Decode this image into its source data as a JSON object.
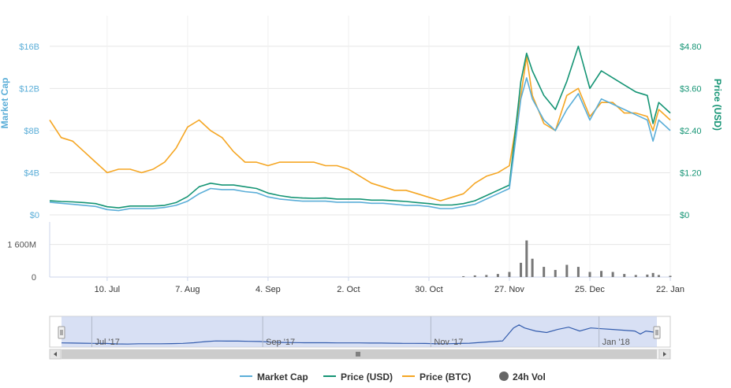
{
  "chart_data": {
    "type": "line",
    "x": [
      "2017-06-20",
      "2017-06-24",
      "2017-06-28",
      "2017-07-02",
      "2017-07-06",
      "2017-07-10",
      "2017-07-14",
      "2017-07-18",
      "2017-07-22",
      "2017-07-26",
      "2017-07-30",
      "2017-08-03",
      "2017-08-07",
      "2017-08-11",
      "2017-08-15",
      "2017-08-19",
      "2017-08-23",
      "2017-08-27",
      "2017-08-31",
      "2017-09-04",
      "2017-09-08",
      "2017-09-12",
      "2017-09-16",
      "2017-09-20",
      "2017-09-24",
      "2017-09-28",
      "2017-10-02",
      "2017-10-06",
      "2017-10-10",
      "2017-10-14",
      "2017-10-18",
      "2017-10-22",
      "2017-10-26",
      "2017-10-30",
      "2017-11-03",
      "2017-11-07",
      "2017-11-11",
      "2017-11-15",
      "2017-11-19",
      "2017-11-23",
      "2017-11-27",
      "2017-12-01",
      "2017-12-03",
      "2017-12-05",
      "2017-12-09",
      "2017-12-13",
      "2017-12-17",
      "2017-12-21",
      "2017-12-25",
      "2017-12-29",
      "2018-01-02",
      "2018-01-06",
      "2018-01-10",
      "2018-01-14",
      "2018-01-16",
      "2018-01-18",
      "2018-01-22"
    ],
    "series": [
      {
        "name": "Market Cap",
        "axis": "left",
        "color": "#5baed8",
        "values": [
          1.2,
          1.1,
          1.0,
          0.9,
          0.8,
          0.5,
          0.4,
          0.6,
          0.6,
          0.6,
          0.7,
          0.9,
          1.3,
          2.0,
          2.5,
          2.4,
          2.4,
          2.2,
          2.1,
          1.7,
          1.5,
          1.4,
          1.3,
          1.3,
          1.3,
          1.2,
          1.2,
          1.2,
          1.1,
          1.1,
          1.0,
          0.9,
          0.9,
          0.8,
          0.6,
          0.6,
          0.8,
          1.0,
          1.5,
          2.0,
          2.5,
          11.0,
          13.0,
          11.0,
          9.0,
          8.0,
          10.0,
          11.5,
          9.0,
          11.0,
          10.5,
          10.0,
          9.5,
          9.0,
          7.0,
          9.0,
          8.0
        ]
      },
      {
        "name": "Price (USD)",
        "axis": "right",
        "color": "#149474",
        "values": [
          0.4,
          0.38,
          0.37,
          0.35,
          0.32,
          0.23,
          0.2,
          0.25,
          0.25,
          0.25,
          0.27,
          0.35,
          0.52,
          0.8,
          0.9,
          0.85,
          0.85,
          0.8,
          0.75,
          0.62,
          0.55,
          0.5,
          0.48,
          0.47,
          0.48,
          0.45,
          0.45,
          0.45,
          0.42,
          0.42,
          0.4,
          0.38,
          0.35,
          0.32,
          0.28,
          0.28,
          0.32,
          0.4,
          0.55,
          0.7,
          0.85,
          3.8,
          4.6,
          4.1,
          3.4,
          3.0,
          3.8,
          4.8,
          3.6,
          4.1,
          3.9,
          3.7,
          3.5,
          3.4,
          2.6,
          3.2,
          2.9
        ]
      },
      {
        "name": "Price (BTC)",
        "axis": "right",
        "color": "#f5a623",
        "values": [
          2.7,
          2.2,
          2.1,
          1.8,
          1.5,
          1.2,
          1.3,
          1.3,
          1.2,
          1.3,
          1.5,
          1.9,
          2.5,
          2.7,
          2.4,
          2.2,
          1.8,
          1.5,
          1.5,
          1.4,
          1.5,
          1.5,
          1.5,
          1.5,
          1.4,
          1.4,
          1.3,
          1.1,
          0.9,
          0.8,
          0.7,
          0.7,
          0.6,
          0.5,
          0.4,
          0.5,
          0.6,
          0.9,
          1.1,
          1.2,
          1.4,
          3.4,
          4.5,
          3.4,
          2.6,
          2.4,
          3.4,
          3.6,
          2.8,
          3.2,
          3.2,
          2.9,
          2.9,
          2.8,
          2.4,
          3.0,
          2.7
        ]
      },
      {
        "name": "24h Vol",
        "axis": "volume",
        "color": "#888888",
        "values": [
          0,
          0,
          0,
          0,
          0,
          0,
          0,
          0,
          0,
          0,
          0,
          0,
          0,
          0,
          0,
          0,
          0,
          0,
          0,
          0,
          0,
          0,
          0,
          0,
          0,
          0,
          0,
          0,
          0,
          0,
          0,
          0,
          0,
          0,
          0,
          0,
          40,
          80,
          100,
          150,
          250,
          700,
          1800,
          900,
          500,
          350,
          600,
          500,
          250,
          300,
          250,
          150,
          100,
          120,
          200,
          100,
          60
        ]
      }
    ],
    "y_left": {
      "title": "Market Cap",
      "ticks": [
        "$0",
        "$4B",
        "$8B",
        "$12B",
        "$16B"
      ],
      "tick_values": [
        0,
        4,
        8,
        12,
        16
      ],
      "range": [
        0,
        18
      ]
    },
    "y_right": {
      "title": "Price (USD)",
      "ticks": [
        "$0",
        "$1.20",
        "$2.40",
        "$3.60",
        "$4.80"
      ],
      "tick_values": [
        0,
        1.2,
        2.4,
        3.6,
        4.8
      ],
      "range": [
        0,
        5.4
      ]
    },
    "y_volume": {
      "ticks": [
        "0",
        "1 600M"
      ],
      "tick_values": [
        0,
        1600
      ],
      "range": [
        0,
        2400
      ]
    },
    "x_ticks": [
      {
        "label": "10. Jul",
        "date": "2017-07-10"
      },
      {
        "label": "7. Aug",
        "date": "2017-08-07"
      },
      {
        "label": "4. Sep",
        "date": "2017-09-04"
      },
      {
        "label": "2. Oct",
        "date": "2017-10-02"
      },
      {
        "label": "30. Oct",
        "date": "2017-10-30"
      },
      {
        "label": "27. Nov",
        "date": "2017-11-27"
      },
      {
        "label": "25. Dec",
        "date": "2017-12-25"
      },
      {
        "label": "22. Jan",
        "date": "2018-01-22"
      }
    ],
    "navigator_ticks": [
      {
        "label": "Jul '17",
        "date": "2017-07-01"
      },
      {
        "label": "Sep '17",
        "date": "2017-09-01"
      },
      {
        "label": "Nov '17",
        "date": "2017-11-01"
      },
      {
        "label": "Jan '18",
        "date": "2018-01-01"
      }
    ],
    "legend": [
      {
        "label": "Market Cap",
        "color": "#5baed8",
        "symbol": "line"
      },
      {
        "label": "Price (USD)",
        "color": "#149474",
        "symbol": "line"
      },
      {
        "label": "Price (BTC)",
        "color": "#f5a623",
        "symbol": "line"
      },
      {
        "label": "24h Vol",
        "color": "#666666",
        "symbol": "circle"
      }
    ],
    "legend_position": "bottom-center",
    "grid": true
  },
  "colors": {
    "left_axis": "#5baed8",
    "right_axis": "#149474",
    "navigator_fill": "#c8d3ef"
  },
  "icons": {
    "scroll_left": "triangle-left-icon",
    "scroll_right": "triangle-right-icon",
    "grip": "grip-icon"
  }
}
